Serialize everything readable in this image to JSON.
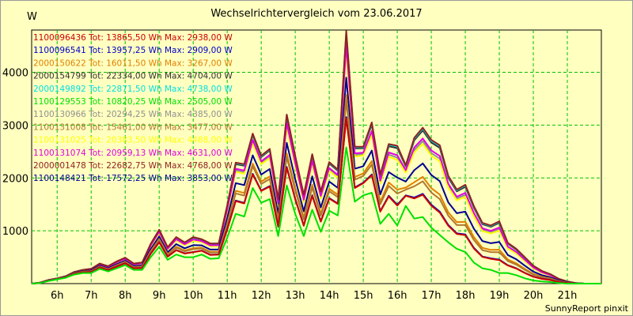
{
  "chart_data": {
    "type": "line",
    "title": "Wechselrichtervergleich vom 23.06.2017",
    "ylabel": "W",
    "footer": "SunnyReport pinxit",
    "xlim": [
      5.25,
      22
    ],
    "ylim": [
      0,
      4800
    ],
    "x_ticks": [
      {
        "x": 6,
        "label": "6h"
      },
      {
        "x": 7,
        "label": "7h"
      },
      {
        "x": 8,
        "label": "8h"
      },
      {
        "x": 9,
        "label": "9h"
      },
      {
        "x": 10,
        "label": "10h"
      },
      {
        "x": 11,
        "label": "11h"
      },
      {
        "x": 12,
        "label": "12h"
      },
      {
        "x": 13,
        "label": "13h"
      },
      {
        "x": 14,
        "label": "14h"
      },
      {
        "x": 15,
        "label": "15h"
      },
      {
        "x": 16,
        "label": "16h"
      },
      {
        "x": 17,
        "label": "17h"
      },
      {
        "x": 18,
        "label": "18h"
      },
      {
        "x": 19,
        "label": "19h"
      },
      {
        "x": 20,
        "label": "20h"
      },
      {
        "x": 21,
        "label": "21h"
      }
    ],
    "y_ticks": [
      {
        "y": 1000,
        "label": "1000"
      },
      {
        "y": 2000,
        "label": "2000"
      },
      {
        "y": 3000,
        "label": "3000"
      },
      {
        "y": 4000,
        "label": "4000"
      }
    ],
    "grid": true,
    "legend_position": "top-left",
    "x": [
      5.25,
      5.5,
      5.75,
      6.0,
      6.25,
      6.5,
      6.75,
      7.0,
      7.25,
      7.5,
      7.75,
      8.0,
      8.25,
      8.5,
      8.75,
      9.0,
      9.25,
      9.5,
      9.75,
      10.0,
      10.25,
      10.5,
      10.75,
      11.0,
      11.25,
      11.5,
      11.75,
      12.0,
      12.25,
      12.5,
      12.75,
      13.0,
      13.25,
      13.5,
      13.75,
      14.0,
      14.25,
      14.5,
      14.75,
      15.0,
      15.25,
      15.5,
      15.75,
      16.0,
      16.25,
      16.5,
      16.75,
      17.0,
      17.25,
      17.5,
      17.75,
      18.0,
      18.25,
      18.5,
      18.75,
      19.0,
      19.25,
      19.5,
      19.75,
      20.0,
      20.25,
      20.5,
      20.75,
      21.0,
      21.25,
      21.5,
      21.75,
      22.0
    ],
    "profiles": {
      "base": [
        0,
        10,
        50,
        80,
        110,
        170,
        200,
        200,
        280,
        230,
        290,
        350,
        260,
        260,
        500,
        700,
        450,
        550,
        500,
        500,
        550,
        470,
        480,
        870,
        1320,
        1270,
        1810,
        1530,
        1600,
        900,
        1860,
        1320,
        900,
        1400,
        980,
        1380,
        1290,
        2580,
        1550,
        1670,
        1720,
        1130,
        1320,
        1100,
        1470,
        1230,
        1260,
        1060,
        920,
        780,
        660,
        600,
        400,
        290,
        260,
        200,
        200,
        160,
        100,
        60,
        40,
        30,
        10,
        0,
        0,
        0,
        0,
        0
      ],
      "high": [
        0,
        20,
        70,
        100,
        140,
        220,
        260,
        280,
        380,
        330,
        420,
        490,
        380,
        400,
        750,
        1020,
        690,
        880,
        780,
        880,
        840,
        760,
        760,
        1480,
        2290,
        2260,
        2840,
        2420,
        2550,
        1600,
        3200,
        2420,
        1680,
        2450,
        1750,
        2300,
        2160,
        4780,
        2590,
        2590,
        3050,
        2060,
        2640,
        2610,
        2240,
        2760,
        2950,
        2720,
        2620,
        2040,
        1780,
        1870,
        1470,
        1150,
        1100,
        1180,
        770,
        660,
        500,
        340,
        240,
        180,
        90,
        40,
        10,
        0,
        0,
        0
      ]
    },
    "series": [
      {
        "name": "1100096436",
        "color": "#cc0000",
        "tot": "13865,50",
        "max": "2938,00",
        "k": 0.25,
        "peak": 2938
      },
      {
        "name": "1100096541",
        "color": "#0000c8",
        "tot": "13957,25",
        "max": "2909,00",
        "k": 0.26,
        "peak": 2909
      },
      {
        "name": "2000150622",
        "color": "#e08000",
        "tot": "16011,50",
        "max": "3267,00",
        "k": 0.45,
        "peak": 3267
      },
      {
        "name": "2000154799",
        "color": "#303030",
        "tot": "22334,00",
        "max": "4704,00",
        "k": 0.97,
        "peak": 4704
      },
      {
        "name": "2000149892",
        "color": "#00e0e0",
        "tot": "22871,50",
        "max": "4738,00",
        "k": 0.99,
        "peak": 4738
      },
      {
        "name": "1100129553",
        "color": "#00e000",
        "tot": "10820,25",
        "max": "2505,00",
        "k": 0.0,
        "peak": 2505
      },
      {
        "name": "1100130966",
        "color": "#909090",
        "tot": "20294,25",
        "max": "4385,00",
        "k": 0.85,
        "peak": 4385
      },
      {
        "name": "1100131008",
        "color": "#b07830",
        "tot": "15461,00",
        "max": "3477,00",
        "k": 0.4,
        "peak": 3477
      },
      {
        "name": "1100131025",
        "color": "#ffff00",
        "tot": "20383,50",
        "max": "4488,00",
        "k": 0.82,
        "peak": 4488
      },
      {
        "name": "1100131074",
        "color": "#e000e0",
        "tot": "20959,13",
        "max": "4631,00",
        "k": 0.88,
        "peak": 4631
      },
      {
        "name": "2000001478",
        "color": "#902020",
        "tot": "22682,75",
        "max": "4768,00",
        "k": 1.0,
        "peak": 4768
      },
      {
        "name": "1100148421",
        "color": "#000090",
        "tot": "17572,25",
        "max": "3853,00",
        "k": 0.6,
        "peak": 3853
      }
    ],
    "legend_template": {
      "tot": "Tot:",
      "unit_wh": "Wh",
      "max": "Max:",
      "unit_w": "W"
    }
  }
}
